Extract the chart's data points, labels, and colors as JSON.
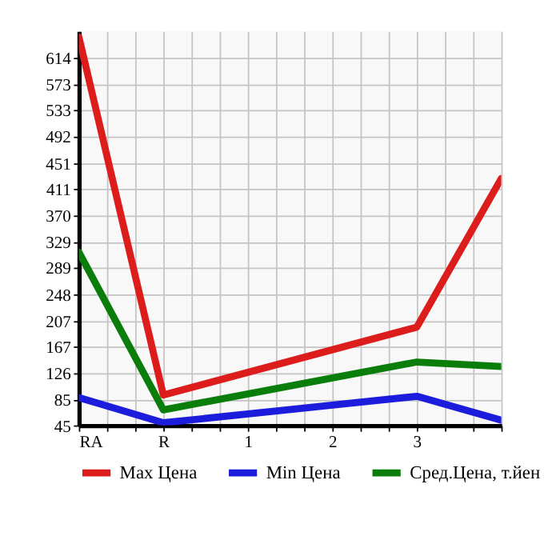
{
  "chart_data": {
    "type": "line",
    "categories": [
      "RA",
      "R",
      "1",
      "2",
      "3",
      null
    ],
    "ylim": [
      45,
      655
    ],
    "yticks": [
      45,
      85,
      126,
      167,
      207,
      248,
      289,
      329,
      370,
      411,
      451,
      492,
      533,
      573,
      614
    ],
    "grid": true,
    "legend": "bottom",
    "marker": "none",
    "line_style": "solid",
    "series": [
      {
        "name": "Max Цена",
        "color": "#dd1c1c",
        "values": [
          646,
          92,
          null,
          null,
          197,
          427
        ]
      },
      {
        "name": "Min Цена",
        "color": "#1c1cdd",
        "values": [
          88,
          49,
          null,
          null,
          90,
          53
        ]
      },
      {
        "name": "Сред.Цена, т.йен",
        "color": "#0a7d0a",
        "values": [
          313,
          69,
          null,
          null,
          143,
          136
        ]
      }
    ]
  }
}
